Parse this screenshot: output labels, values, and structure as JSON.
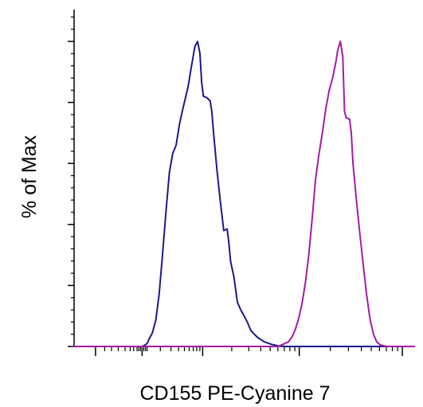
{
  "chart_data": {
    "type": "line",
    "title": "",
    "xlabel": "CD155 PE-Cyanine 7",
    "ylabel": "% of Max",
    "x_scale": "logicle",
    "y_scale": "linear",
    "ylim": [
      0,
      100
    ],
    "grid": false,
    "legend": "none",
    "tick_labels_shown": false,
    "series": [
      {
        "color": "#1a1a8c",
        "points": [
          [
            0.2,
            0
          ],
          [
            0.21,
            0.6
          ],
          [
            0.215,
            1.0
          ],
          [
            0.22,
            2.3
          ],
          [
            0.23,
            4.4
          ],
          [
            0.24,
            8.5
          ],
          [
            0.25,
            17.2
          ],
          [
            0.26,
            30.0
          ],
          [
            0.27,
            44.0
          ],
          [
            0.28,
            57.0
          ],
          [
            0.29,
            63.2
          ],
          [
            0.3,
            66.0
          ],
          [
            0.31,
            73.0
          ],
          [
            0.32,
            78.0
          ],
          [
            0.335,
            85.0
          ],
          [
            0.345,
            91.8
          ],
          [
            0.355,
            98.3
          ],
          [
            0.363,
            100.0
          ],
          [
            0.37,
            96.0
          ],
          [
            0.375,
            86.7
          ],
          [
            0.38,
            82.0
          ],
          [
            0.39,
            81.6
          ],
          [
            0.4,
            80.5
          ],
          [
            0.405,
            77.0
          ],
          [
            0.41,
            70.0
          ],
          [
            0.42,
            58.0
          ],
          [
            0.43,
            47.5
          ],
          [
            0.44,
            38.0
          ],
          [
            0.45,
            38.5
          ],
          [
            0.455,
            34.0
          ],
          [
            0.46,
            28.0
          ],
          [
            0.47,
            22.7
          ],
          [
            0.48,
            14.5
          ],
          [
            0.49,
            12.0
          ],
          [
            0.5,
            10.0
          ],
          [
            0.51,
            7.8
          ],
          [
            0.52,
            5.2
          ],
          [
            0.53,
            4.0
          ],
          [
            0.54,
            2.9
          ],
          [
            0.56,
            1.5
          ],
          [
            0.58,
            0.7
          ],
          [
            0.6,
            0.2
          ],
          [
            0.62,
            0.0
          ]
        ]
      },
      {
        "color": "#a31ca3",
        "points": [
          [
            0.6,
            0
          ],
          [
            0.61,
            0.5
          ],
          [
            0.63,
            1.5
          ],
          [
            0.64,
            3.0
          ],
          [
            0.65,
            5.5
          ],
          [
            0.66,
            9.0
          ],
          [
            0.67,
            14.0
          ],
          [
            0.68,
            21.0
          ],
          [
            0.69,
            30.0
          ],
          [
            0.7,
            42.0
          ],
          [
            0.71,
            55.0
          ],
          [
            0.72,
            63.0
          ],
          [
            0.73,
            70.0
          ],
          [
            0.74,
            78.0
          ],
          [
            0.75,
            84.0
          ],
          [
            0.76,
            88.0
          ],
          [
            0.77,
            93.5
          ],
          [
            0.775,
            97.0
          ],
          [
            0.78,
            99.0
          ],
          [
            0.783,
            100.0
          ],
          [
            0.79,
            95.0
          ],
          [
            0.795,
            77.0
          ],
          [
            0.8,
            75.0
          ],
          [
            0.81,
            74.5
          ],
          [
            0.815,
            70.0
          ],
          [
            0.82,
            60.0
          ],
          [
            0.83,
            48.0
          ],
          [
            0.84,
            37.0
          ],
          [
            0.85,
            27.0
          ],
          [
            0.86,
            17.0
          ],
          [
            0.87,
            9.0
          ],
          [
            0.88,
            4.0
          ],
          [
            0.89,
            1.5
          ],
          [
            0.9,
            0.5
          ],
          [
            0.92,
            0.0
          ]
        ]
      }
    ]
  }
}
